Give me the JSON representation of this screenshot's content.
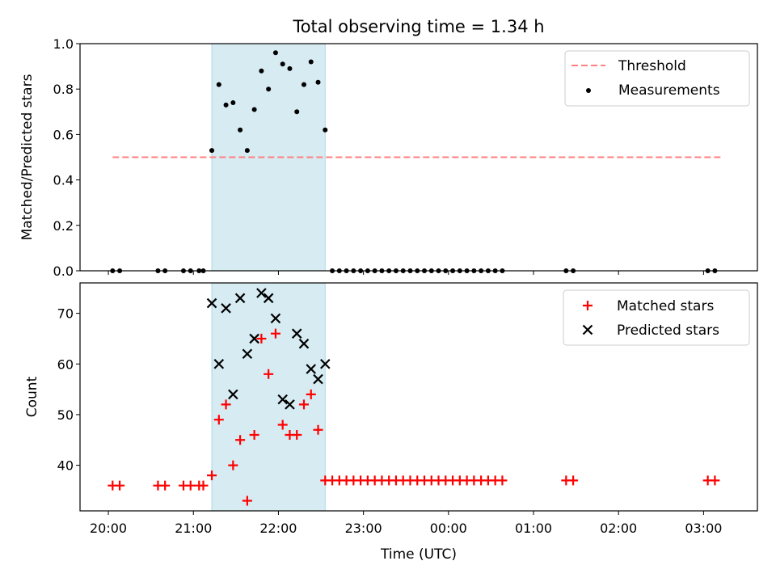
{
  "title": "Total observing time = 1.34 h",
  "colors": {
    "observing_window": "#add8e6",
    "threshold": "#ff7f7f",
    "measurement": "#000000",
    "matched": "#ff0000",
    "predicted": "#000000"
  },
  "chart_data": [
    {
      "type": "scatter",
      "ylabel": "Matched/Predicted stars",
      "ylim": [
        0,
        1.0
      ],
      "yticks": [
        "0.0",
        "0.2",
        "0.4",
        "0.6",
        "0.8",
        "1.0"
      ],
      "xlim": [
        "19:40",
        "03:38"
      ],
      "shaded_window": [
        "21:13",
        "22:33"
      ],
      "threshold": {
        "name": "Threshold",
        "value": 0.5,
        "x_start": "20:03",
        "x_end": "03:14",
        "style": "dashed"
      },
      "legend": {
        "position": "top-right",
        "entries": [
          "Threshold",
          "Measurements"
        ]
      },
      "series": [
        {
          "name": "Measurements",
          "x": [
            "20:03",
            "20:08",
            "20:35",
            "20:40",
            "20:53",
            "20:58",
            "21:04",
            "21:07",
            "21:13",
            "21:18",
            "21:23",
            "21:28",
            "21:33",
            "21:38",
            "21:43",
            "21:48",
            "21:53",
            "21:58",
            "22:03",
            "22:08",
            "22:13",
            "22:18",
            "22:23",
            "22:28",
            "22:33",
            "22:38",
            "22:43",
            "22:48",
            "22:53",
            "22:58",
            "23:03",
            "23:08",
            "23:13",
            "23:18",
            "23:23",
            "23:28",
            "23:33",
            "23:38",
            "23:43",
            "23:48",
            "23:53",
            "23:58",
            "00:03",
            "00:08",
            "00:13",
            "00:18",
            "00:23",
            "00:28",
            "00:33",
            "00:38",
            "01:23",
            "01:28",
            "03:03",
            "03:08"
          ],
          "y": [
            0,
            0,
            0,
            0,
            0,
            0,
            0,
            0,
            0.53,
            0.82,
            0.73,
            0.74,
            0.62,
            0.53,
            0.71,
            0.88,
            0.8,
            0.96,
            0.91,
            0.89,
            0.7,
            0.82,
            0.92,
            0.83,
            0.62,
            0,
            0,
            0,
            0,
            0,
            0,
            0,
            0,
            0,
            0,
            0,
            0,
            0,
            0,
            0,
            0,
            0,
            0,
            0,
            0,
            0,
            0,
            0,
            0,
            0,
            0,
            0,
            0,
            0
          ]
        }
      ]
    },
    {
      "type": "scatter",
      "xlabel": "Time (UTC)",
      "ylabel": "Count",
      "ylim": [
        31,
        76
      ],
      "yticks": [
        "40",
        "50",
        "60",
        "70"
      ],
      "xticks": [
        "20:00",
        "21:00",
        "22:00",
        "23:00",
        "00:00",
        "01:00",
        "02:00",
        "03:00"
      ],
      "xlim": [
        "19:40",
        "03:38"
      ],
      "shaded_window": [
        "21:13",
        "22:33"
      ],
      "legend": {
        "position": "top-right",
        "entries": [
          "Matched stars",
          "Predicted stars"
        ]
      },
      "series": [
        {
          "name": "Matched stars",
          "marker": "+",
          "x": [
            "20:03",
            "20:08",
            "20:35",
            "20:40",
            "20:53",
            "20:58",
            "21:04",
            "21:07",
            "21:13",
            "21:18",
            "21:23",
            "21:28",
            "21:33",
            "21:38",
            "21:43",
            "21:48",
            "21:53",
            "21:58",
            "22:03",
            "22:08",
            "22:13",
            "22:18",
            "22:23",
            "22:28",
            "22:33",
            "22:38",
            "22:43",
            "22:48",
            "22:53",
            "22:58",
            "23:03",
            "23:08",
            "23:13",
            "23:18",
            "23:23",
            "23:28",
            "23:33",
            "23:38",
            "23:43",
            "23:48",
            "23:53",
            "23:58",
            "00:03",
            "00:08",
            "00:13",
            "00:18",
            "00:23",
            "00:28",
            "00:33",
            "00:38",
            "01:23",
            "01:28",
            "03:03",
            "03:08"
          ],
          "y": [
            36,
            36,
            36,
            36,
            36,
            36,
            36,
            36,
            38,
            49,
            52,
            40,
            45,
            33,
            46,
            65,
            58,
            66,
            48,
            46,
            46,
            52,
            54,
            47,
            37,
            37,
            37,
            37,
            37,
            37,
            37,
            37,
            37,
            37,
            37,
            37,
            37,
            37,
            37,
            37,
            37,
            37,
            37,
            37,
            37,
            37,
            37,
            37,
            37,
            37,
            37,
            37,
            37,
            37
          ]
        },
        {
          "name": "Predicted stars",
          "marker": "x",
          "x": [
            "21:13",
            "21:18",
            "21:23",
            "21:28",
            "21:33",
            "21:38",
            "21:43",
            "21:48",
            "21:53",
            "21:58",
            "22:03",
            "22:08",
            "22:13",
            "22:18",
            "22:23",
            "22:28",
            "22:33"
          ],
          "y": [
            72,
            60,
            71,
            54,
            73,
            62,
            65,
            74,
            73,
            69,
            53,
            52,
            66,
            64,
            59,
            57,
            60
          ]
        }
      ]
    }
  ]
}
